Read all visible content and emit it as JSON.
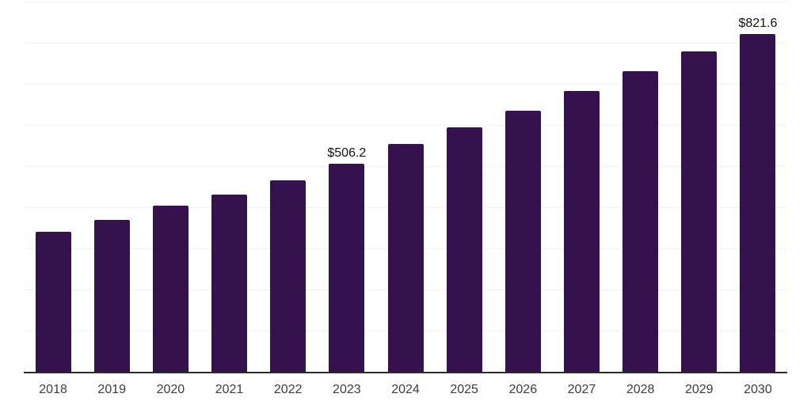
{
  "chart": {
    "background": "#ffffff"
  },
  "chart_data": {
    "type": "bar",
    "title": "",
    "xlabel": "",
    "ylabel": "",
    "categories": [
      "2018",
      "2019",
      "2020",
      "2021",
      "2022",
      "2023",
      "2024",
      "2025",
      "2026",
      "2027",
      "2028",
      "2029",
      "2030"
    ],
    "values": [
      341.0,
      369.9,
      403.8,
      430.8,
      466.0,
      506.2,
      553.3,
      594.9,
      634.6,
      682.1,
      730.2,
      778.8,
      821.6
    ],
    "data_labels": {
      "2023": "$506.2",
      "2030": "$821.6"
    },
    "ylim": [
      0,
      900
    ],
    "grid_step": 100,
    "grid": true,
    "legend": false,
    "y_tick_labels_visible": false,
    "colors": {
      "bar": "#35114e",
      "gridline": "#f0f0f0",
      "axis_line": "#2b2b2b",
      "x_tick_label": "#3c3c3c",
      "data_label": "#111111"
    }
  }
}
